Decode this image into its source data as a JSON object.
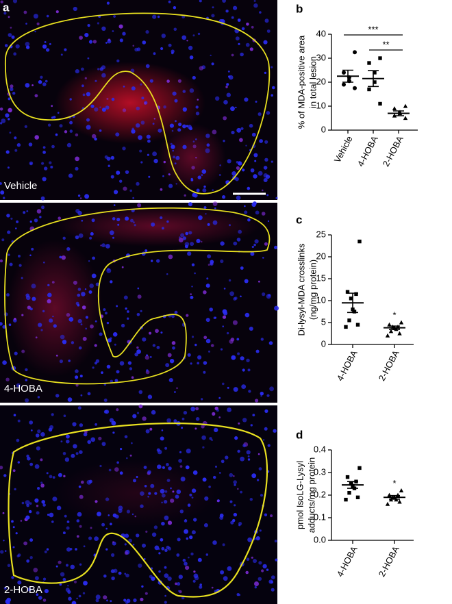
{
  "micrographs": {
    "panel_label": "a",
    "images": [
      "Vehicle",
      "4-HOBA",
      "2-HOBA"
    ]
  },
  "chart_data": [
    {
      "type": "dot",
      "panel_label": "b",
      "ylabel": [
        "% of MDA-positive area",
        "in total lesion"
      ],
      "categories": [
        "Vehicle",
        "4-HOBA",
        "2-HOBA"
      ],
      "markers": [
        "circle",
        "square",
        "triangle"
      ],
      "points": [
        [
          32.5,
          24,
          22,
          20.5,
          19,
          17.5
        ],
        [
          30,
          28,
          24,
          20,
          17,
          11
        ],
        [
          10,
          9,
          7.5,
          7,
          6,
          5
        ]
      ],
      "means": [
        22.5,
        21.5,
        7
      ],
      "sems": [
        2.5,
        3.3,
        1
      ],
      "ylim": [
        0,
        40
      ],
      "yticks": [
        0,
        10,
        20,
        30,
        40
      ],
      "annotations": [
        {
          "text": "***",
          "between": [
            "Vehicle",
            "2-HOBA"
          ]
        },
        {
          "text": "**",
          "between": [
            "4-HOBA",
            "2-HOBA"
          ]
        }
      ]
    },
    {
      "type": "dot",
      "panel_label": "c",
      "ylabel": [
        "Di-lysyl-MDA crosslinks",
        "(ng/mg protein)"
      ],
      "categories": [
        "4-HOBA",
        "2-HOBA"
      ],
      "markers": [
        "square",
        "triangle"
      ],
      "points": [
        [
          23.5,
          12,
          11.5,
          10.5,
          8,
          7.5,
          5.5,
          4.5,
          4
        ],
        [
          5,
          4.5,
          4,
          4,
          3.8,
          3.5,
          3,
          2.5,
          2
        ]
      ],
      "means": [
        9.5,
        3.8
      ],
      "sems": [
        2.2,
        0.4
      ],
      "ylim": [
        0,
        25
      ],
      "yticks": [
        0,
        5,
        10,
        15,
        20,
        25
      ],
      "annotations": [
        {
          "text": "*",
          "between": [
            "2-HOBA"
          ]
        }
      ]
    },
    {
      "type": "dot",
      "panel_label": "d",
      "ylabel": [
        "pmol IsoLG-Lysyl",
        "adducts/mg protein"
      ],
      "categories": [
        "4-HOBA",
        "2-HOBA"
      ],
      "markers": [
        "square",
        "triangle"
      ],
      "points": [
        [
          0.32,
          0.28,
          0.26,
          0.25,
          0.24,
          0.23,
          0.21,
          0.19,
          0.18
        ],
        [
          0.22,
          0.2,
          0.2,
          0.19,
          0.19,
          0.18,
          0.18,
          0.17,
          0.16
        ]
      ],
      "means": [
        0.245,
        0.19
      ],
      "sems": [
        0.015,
        0.008
      ],
      "ylim": [
        0,
        0.4
      ],
      "yticks": [
        {
          "value": 0,
          "label": "0.0"
        },
        0.1,
        0.2,
        0.3,
        0.4
      ],
      "annotations": [
        {
          "text": "*",
          "between": [
            "2-HOBA"
          ]
        }
      ]
    }
  ]
}
